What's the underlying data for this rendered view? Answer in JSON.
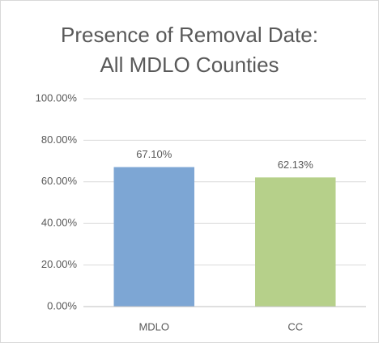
{
  "chart_data": {
    "type": "bar",
    "title": [
      "Presence of Removal Date:",
      "All MDLO Counties"
    ],
    "categories": [
      "MDLO",
      "CC"
    ],
    "values": [
      67.1,
      62.13
    ],
    "value_labels": [
      "67.10%",
      "62.13%"
    ],
    "colors": [
      "#7da6d4",
      "#b6d08a"
    ],
    "ylim": [
      0,
      100
    ],
    "yticks": [
      {
        "value": 0,
        "label": "0.00%"
      },
      {
        "value": 20,
        "label": "20.00%"
      },
      {
        "value": 40,
        "label": "40.00%"
      },
      {
        "value": 60,
        "label": "60.00%"
      },
      {
        "value": 80,
        "label": "80.00%"
      },
      {
        "value": 100,
        "label": "100.00%"
      }
    ],
    "grid": true
  }
}
